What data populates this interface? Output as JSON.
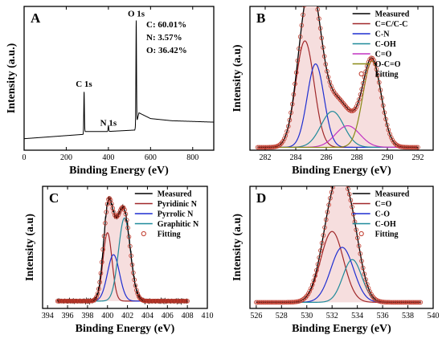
{
  "colors": {
    "measured": "#000000",
    "fitting_marker": "#c0392b",
    "fitting_fill": "#f6dede",
    "peak_red": "#a0282a",
    "peak_blue": "#1f2fd1",
    "peak_teal": "#1f8a9a",
    "peak_magenta": "#c234c2",
    "peak_olive": "#8a8a16",
    "survey_line": "#000000"
  },
  "chart_data": [
    {
      "id": "A",
      "panel_letter": "A",
      "type": "line",
      "xlabel": "Binding Energy (eV)",
      "ylabel": "Intensity (a.u.)",
      "xlim": [
        0,
        900
      ],
      "ylim": [
        0,
        1
      ],
      "xticks": [
        0,
        200,
        400,
        600,
        800
      ],
      "yticks": [],
      "composition": [
        "C: 60.01%",
        "N: 3.57%",
        "O: 36.42%"
      ],
      "peak_labels": [
        {
          "text": "C 1s",
          "x": 284,
          "y": 0.44
        },
        {
          "text": "N 1s",
          "x": 400,
          "y": 0.17
        },
        {
          "text": "O 1s",
          "x": 532,
          "y": 0.93
        }
      ],
      "survey": {
        "baseline": [
          [
            0,
            0.08
          ],
          [
            280,
            0.11
          ],
          [
            285,
            0.15
          ],
          [
            290,
            0.13
          ],
          [
            395,
            0.13
          ],
          [
            525,
            0.14
          ],
          [
            545,
            0.26
          ],
          [
            600,
            0.22
          ],
          [
            700,
            0.205
          ],
          [
            800,
            0.2
          ],
          [
            900,
            0.195
          ]
        ],
        "peaks": [
          {
            "center": 284.6,
            "height": 0.26,
            "width": 1.4
          },
          {
            "center": 400,
            "height": 0.04,
            "width": 1.6
          },
          {
            "center": 532,
            "height": 0.72,
            "width": 1.4
          }
        ]
      }
    },
    {
      "id": "B",
      "panel_letter": "B",
      "type": "line",
      "xlabel": "Binding Energy (eV)",
      "ylabel": "Intensity (a.u)",
      "xlim": [
        281,
        293
      ],
      "ylim": [
        0,
        1
      ],
      "xticks": [
        282,
        284,
        286,
        288,
        290,
        292
      ],
      "yticks": [],
      "baseline": 0.02,
      "fit_range": [
        281.5,
        292
      ],
      "legend": [
        {
          "label": "Measured",
          "kind": "line",
          "color_key": "measured"
        },
        {
          "label": "C=C/C-C",
          "kind": "line",
          "color_key": "peak_red"
        },
        {
          "label": "C-N",
          "kind": "line",
          "color_key": "peak_blue"
        },
        {
          "label": "C-OH",
          "kind": "line",
          "color_key": "peak_teal"
        },
        {
          "label": "C=O",
          "kind": "line",
          "color_key": "peak_magenta"
        },
        {
          "label": "O-C=O",
          "kind": "line",
          "color_key": "peak_olive"
        },
        {
          "label": "Fitting",
          "kind": "marker",
          "color_key": "fitting_marker"
        }
      ],
      "series": [
        {
          "name": "C=C/C-C",
          "color_key": "peak_red",
          "center": 284.6,
          "height": 0.74,
          "sigma": 0.6
        },
        {
          "name": "C-N",
          "color_key": "peak_blue",
          "center": 285.3,
          "height": 0.58,
          "sigma": 0.55
        },
        {
          "name": "C-OH",
          "color_key": "peak_teal",
          "center": 286.4,
          "height": 0.25,
          "sigma": 0.75
        },
        {
          "name": "C=O",
          "color_key": "peak_magenta",
          "center": 287.4,
          "height": 0.15,
          "sigma": 0.8
        },
        {
          "name": "O-C=O",
          "color_key": "peak_olive",
          "center": 289.0,
          "height": 0.6,
          "sigma": 0.6
        }
      ]
    },
    {
      "id": "C",
      "panel_letter": "C",
      "type": "line",
      "xlabel": "Binding Energy (eV)",
      "ylabel": "Intensity (a.u)",
      "xlim": [
        393.5,
        410
      ],
      "ylim": [
        0,
        1
      ],
      "xticks": [
        394,
        396,
        398,
        400,
        402,
        404,
        406,
        408,
        410
      ],
      "yticks": [],
      "baseline": 0.06,
      "fit_range": [
        395,
        408
      ],
      "noisy_measured": true,
      "legend": [
        {
          "label": "Measured",
          "kind": "line",
          "color_key": "measured"
        },
        {
          "label": "Pyridinic N",
          "kind": "line",
          "color_key": "peak_red"
        },
        {
          "label": "Pyrrolic N",
          "kind": "line",
          "color_key": "peak_blue"
        },
        {
          "label": "Graphitic N",
          "kind": "line",
          "color_key": "peak_teal"
        },
        {
          "label": "Fitting",
          "kind": "marker",
          "color_key": "fitting_marker"
        }
      ],
      "series": [
        {
          "name": "Pyridinic N",
          "color_key": "peak_red",
          "center": 400.0,
          "height": 0.56,
          "sigma": 0.45
        },
        {
          "name": "Pyrrolic N",
          "color_key": "peak_blue",
          "center": 400.6,
          "height": 0.38,
          "sigma": 0.6
        },
        {
          "name": "Graphitic N",
          "color_key": "peak_teal",
          "center": 401.7,
          "height": 0.68,
          "sigma": 0.6
        }
      ]
    },
    {
      "id": "D",
      "panel_letter": "D",
      "type": "line",
      "xlabel": "Binding Energy (eV)",
      "ylabel": "Intensity (a.u)",
      "xlim": [
        525.5,
        540
      ],
      "ylim": [
        0,
        1
      ],
      "xticks": [
        526,
        528,
        530,
        532,
        534,
        536,
        538,
        540
      ],
      "yticks": [],
      "baseline": 0.05,
      "fit_range": [
        526,
        539
      ],
      "legend": [
        {
          "label": "Measured",
          "kind": "line",
          "color_key": "measured"
        },
        {
          "label": "C=O",
          "kind": "line",
          "color_key": "peak_red"
        },
        {
          "label": "C-O",
          "kind": "line",
          "color_key": "peak_blue"
        },
        {
          "label": "C-OH",
          "kind": "line",
          "color_key": "peak_teal"
        },
        {
          "label": "Fitting",
          "kind": "marker",
          "color_key": "fitting_marker"
        }
      ],
      "series": [
        {
          "name": "C=O",
          "color_key": "peak_red",
          "center": 532.0,
          "height": 0.58,
          "sigma": 0.9
        },
        {
          "name": "C-O",
          "color_key": "peak_blue",
          "center": 532.8,
          "height": 0.45,
          "sigma": 0.9
        },
        {
          "name": "C-OH",
          "color_key": "peak_teal",
          "center": 533.6,
          "height": 0.35,
          "sigma": 0.75
        }
      ]
    }
  ]
}
